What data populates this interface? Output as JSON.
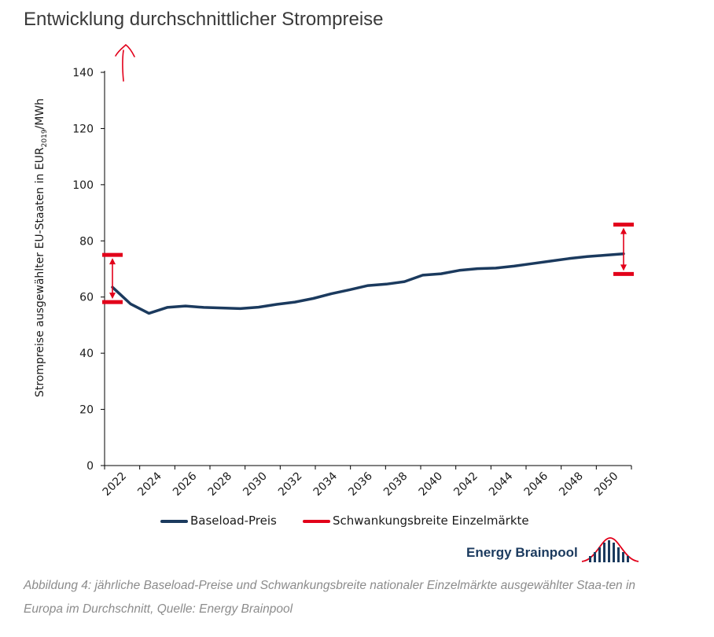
{
  "page": {
    "title": "Entwicklung durchschnittlicher Strompreise"
  },
  "chart_data": {
    "type": "line",
    "title": "Entwicklung durchschnittlicher Strompreise",
    "ylabel": "Strompreise ausgewählter EU-Staaten in EUR2019/MWh",
    "ylabel_parts": {
      "pre": "Strompreise ausgewählter EU-Staaten in EUR",
      "sub": "2019",
      "post": "/MWh"
    },
    "ylim": [
      0,
      140
    ],
    "yticks": [
      "0",
      "20",
      "40",
      "60",
      "80",
      "100",
      "120",
      "140"
    ],
    "xticks": [
      "2022",
      "2024",
      "2026",
      "2028",
      "2030",
      "2032",
      "2034",
      "2036",
      "2038",
      "2040",
      "2042",
      "2044",
      "2046",
      "2048",
      "2050"
    ],
    "xlim": [
      2022,
      2050
    ],
    "grid": false,
    "legend_position": "bottom",
    "series": [
      {
        "name": "Baseload-Preis",
        "color": "#1b3a5e",
        "x": [
          2022,
          2023,
          2024,
          2025,
          2026,
          2027,
          2028,
          2029,
          2030,
          2031,
          2032,
          2033,
          2034,
          2035,
          2036,
          2037,
          2038,
          2039,
          2040,
          2041,
          2042,
          2043,
          2044,
          2045,
          2046,
          2047,
          2048,
          2049,
          2050
        ],
        "values": [
          63.5,
          57.5,
          54.2,
          56.3,
          56.8,
          56.3,
          56.1,
          55.9,
          56.4,
          57.4,
          58.2,
          59.5,
          61.2,
          62.6,
          64.1,
          64.6,
          65.5,
          67.8,
          68.3,
          69.5,
          70.1,
          70.3,
          71.0,
          71.9,
          72.8,
          73.7,
          74.4,
          74.9,
          75.4
        ]
      }
    ],
    "ranges": {
      "name": "Schwankungsbreite Einzelmärkte",
      "color": "#e2001a",
      "items": [
        {
          "x": 2022,
          "low": 58.2,
          "high": 75.0
        },
        {
          "x": 2050,
          "low": 68.2,
          "high": 85.8
        }
      ]
    }
  },
  "legend": {
    "baseload": "Baseload-Preis",
    "range": "Schwankungsbreite Einzelmärkte"
  },
  "brand": {
    "name": "Energy Brainpool"
  },
  "caption": "Abbildung 4: jährliche Baseload-Preise und Schwankungsbreite nationaler Einzelmärkte ausgewählter Staa-ten in Europa im Durchschnitt, Quelle: Energy Brainpool",
  "colors": {
    "baseload": "#1b3a5e",
    "range": "#e2001a",
    "annotation": "#e2001a"
  }
}
